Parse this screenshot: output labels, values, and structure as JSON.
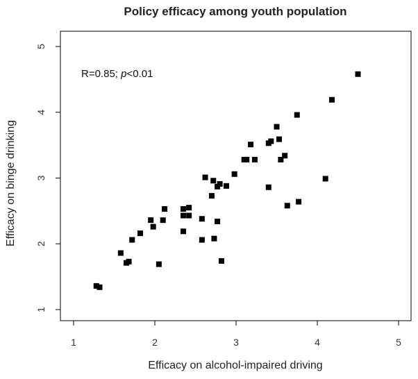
{
  "chart_data": {
    "type": "scatter",
    "title": "Policy efficacy among youth population",
    "xlabel": "Efficacy on alcohol-impaired driving",
    "ylabel": "Efficacy on binge drinking",
    "xlim": [
      1,
      5
    ],
    "ylim": [
      1,
      5
    ],
    "xticks": [
      "1",
      "2",
      "3",
      "4",
      "5"
    ],
    "yticks": [
      "1",
      "2",
      "3",
      "4",
      "5"
    ],
    "annotation": {
      "prefix": "R=0.85; ",
      "italic": "p",
      "suffix": "<0.01"
    },
    "marker_color": "#000000",
    "points": [
      [
        1.28,
        1.36
      ],
      [
        1.32,
        1.34
      ],
      [
        1.58,
        1.86
      ],
      [
        1.65,
        1.71
      ],
      [
        1.68,
        1.73
      ],
      [
        1.72,
        2.06
      ],
      [
        1.82,
        2.16
      ],
      [
        1.95,
        2.36
      ],
      [
        1.98,
        2.26
      ],
      [
        2.05,
        1.69
      ],
      [
        2.1,
        2.36
      ],
      [
        2.12,
        2.53
      ],
      [
        2.35,
        2.53
      ],
      [
        2.35,
        2.43
      ],
      [
        2.35,
        2.19
      ],
      [
        2.42,
        2.55
      ],
      [
        2.42,
        2.43
      ],
      [
        2.58,
        2.38
      ],
      [
        2.58,
        2.06
      ],
      [
        2.62,
        3.01
      ],
      [
        2.7,
        2.73
      ],
      [
        2.72,
        2.96
      ],
      [
        2.73,
        2.08
      ],
      [
        2.77,
        2.87
      ],
      [
        2.77,
        2.34
      ],
      [
        2.8,
        2.91
      ],
      [
        2.82,
        1.74
      ],
      [
        2.88,
        2.88
      ],
      [
        2.98,
        3.06
      ],
      [
        3.1,
        3.28
      ],
      [
        3.13,
        3.28
      ],
      [
        3.18,
        3.51
      ],
      [
        3.23,
        3.28
      ],
      [
        3.4,
        3.53
      ],
      [
        3.4,
        2.86
      ],
      [
        3.43,
        3.56
      ],
      [
        3.5,
        3.78
      ],
      [
        3.53,
        3.59
      ],
      [
        3.55,
        3.28
      ],
      [
        3.6,
        3.34
      ],
      [
        3.63,
        2.58
      ],
      [
        3.75,
        3.96
      ],
      [
        3.77,
        2.64
      ],
      [
        4.1,
        2.99
      ],
      [
        4.18,
        4.19
      ],
      [
        4.5,
        4.58
      ]
    ]
  }
}
